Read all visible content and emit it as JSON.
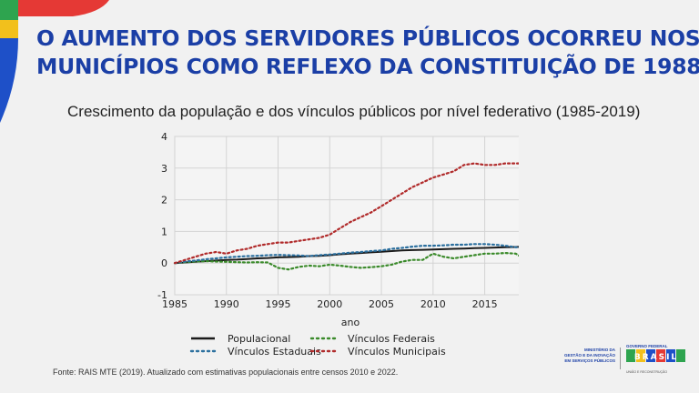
{
  "headline": {
    "line1": "O AUMENTO DOS SERVIDORES PÚBLICOS OCORREU NOS",
    "line2": "MUNICÍPIOS COMO  REFLEXO DA CONSTITUIÇÃO DE 1988"
  },
  "colors": {
    "headline": "#1b3fa6",
    "corner_green": "#2ea44f",
    "corner_yellow": "#f2c01c",
    "corner_red": "#e53935",
    "corner_blue": "#1e50c8"
  },
  "chart_data": {
    "type": "line",
    "title": "Crescimento da população e dos vínculos públicos por nível federativo (1985-2019)",
    "xlabel": "ano",
    "ylabel": "",
    "xlim": [
      1985,
      2019
    ],
    "ylim": [
      -1,
      4
    ],
    "x_ticks": [
      1985,
      1990,
      1995,
      2000,
      2005,
      2010,
      2015
    ],
    "y_ticks": [
      -1,
      0,
      1,
      2,
      3,
      4
    ],
    "grid": true,
    "legend_position": "bottom",
    "x": [
      1985,
      1986,
      1987,
      1988,
      1989,
      1990,
      1991,
      1992,
      1993,
      1994,
      1995,
      1996,
      1997,
      1998,
      1999,
      2000,
      2001,
      2002,
      2003,
      2004,
      2005,
      2006,
      2007,
      2008,
      2009,
      2010,
      2011,
      2012,
      2013,
      2014,
      2015,
      2016,
      2017,
      2018,
      2019
    ],
    "series": [
      {
        "name": "Populacional",
        "color": "#1a1a1a",
        "style": "solid",
        "values": [
          0,
          0.02,
          0.04,
          0.06,
          0.08,
          0.1,
          0.11,
          0.13,
          0.15,
          0.16,
          0.18,
          0.19,
          0.2,
          0.22,
          0.23,
          0.25,
          0.28,
          0.3,
          0.32,
          0.34,
          0.36,
          0.38,
          0.4,
          0.41,
          0.42,
          0.43,
          0.44,
          0.45,
          0.46,
          0.47,
          0.48,
          0.49,
          0.5,
          0.51,
          0.52
        ]
      },
      {
        "name": "Vínculos Federais",
        "color": "#3a8a2a",
        "style": "dotted",
        "values": [
          0,
          0.03,
          0.05,
          0.06,
          0.05,
          0.04,
          0.03,
          0.02,
          0.03,
          0.02,
          -0.15,
          -0.2,
          -0.12,
          -0.08,
          -0.1,
          -0.05,
          -0.08,
          -0.12,
          -0.15,
          -0.13,
          -0.1,
          -0.05,
          0.05,
          0.1,
          0.1,
          0.3,
          0.2,
          0.15,
          0.2,
          0.25,
          0.3,
          0.3,
          0.32,
          0.3,
          0.1
        ]
      },
      {
        "name": "Vínculos Estaduais",
        "color": "#2b6f9e",
        "style": "dotted",
        "values": [
          0,
          0.05,
          0.08,
          0.12,
          0.15,
          0.18,
          0.2,
          0.22,
          0.23,
          0.25,
          0.26,
          0.25,
          0.24,
          0.22,
          0.25,
          0.27,
          0.3,
          0.33,
          0.35,
          0.38,
          0.4,
          0.45,
          0.48,
          0.52,
          0.55,
          0.55,
          0.56,
          0.58,
          0.58,
          0.6,
          0.6,
          0.58,
          0.55,
          0.5,
          0.5
        ]
      },
      {
        "name": "Vínculos Municipais",
        "color": "#b02a2a",
        "style": "dotted",
        "values": [
          0,
          0.1,
          0.2,
          0.3,
          0.35,
          0.3,
          0.4,
          0.45,
          0.55,
          0.6,
          0.65,
          0.65,
          0.7,
          0.75,
          0.8,
          0.9,
          1.1,
          1.3,
          1.45,
          1.6,
          1.8,
          2.0,
          2.2,
          2.4,
          2.55,
          2.7,
          2.8,
          2.9,
          3.1,
          3.15,
          3.1,
          3.1,
          3.15,
          3.15,
          3.15
        ]
      }
    ]
  },
  "source_note": "Fonte: RAIS MTE (2019). Atualizado com estimativas populacionais entre censos 2010 e 2022.",
  "logos": {
    "ministry": [
      "MINISTÉRIO DA",
      "GESTÃO E DA INOVAÇÃO",
      "EM SERVIÇOS PÚBLICOS"
    ],
    "gov_top": "GOVERNO FEDERAL",
    "gov_word": "BRASIL",
    "gov_bottom": "UNIÃO E RECONSTRUÇÃO"
  }
}
